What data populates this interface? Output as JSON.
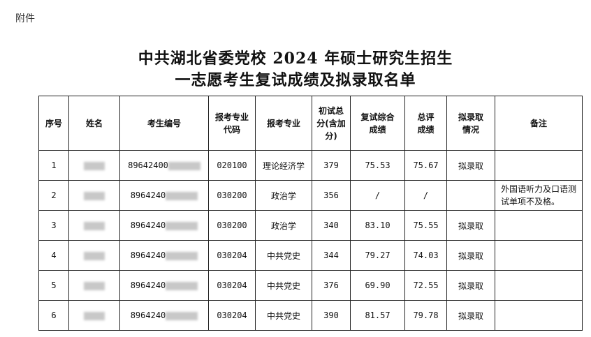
{
  "attachment_label": "附件",
  "title_line1": "中共湖北省委党校 2024 年硕士研究生招生",
  "title_line2": "一志愿考生复试成绩及拟录取名单",
  "columns": [
    "序号",
    "姓名",
    "考生编号",
    "报考专业代码",
    "报考专业",
    "初试总分(含加分)",
    "复试综合成绩",
    "总评成绩",
    "拟录取情况",
    "备注"
  ],
  "rows": [
    {
      "no": "1",
      "id_prefix": "89642400",
      "code": "020100",
      "major": "理论经济学",
      "initial": "379",
      "retest": "75.53",
      "total": "75.67",
      "status": "拟录取",
      "note": ""
    },
    {
      "no": "2",
      "id_prefix": "8964240",
      "code": "030200",
      "major": "政治学",
      "initial": "356",
      "retest": "/",
      "total": "/",
      "status": "",
      "note": "外国语听力及口语测试单项不及格。"
    },
    {
      "no": "3",
      "id_prefix": "8964240",
      "code": "030200",
      "major": "政治学",
      "initial": "340",
      "retest": "83.10",
      "total": "75.55",
      "status": "拟录取",
      "note": ""
    },
    {
      "no": "4",
      "id_prefix": "8964240",
      "code": "030204",
      "major": "中共党史",
      "initial": "344",
      "retest": "79.27",
      "total": "74.03",
      "status": "拟录取",
      "note": ""
    },
    {
      "no": "5",
      "id_prefix": "8964240",
      "code": "030204",
      "major": "中共党史",
      "initial": "376",
      "retest": "69.90",
      "total": "72.55",
      "status": "拟录取",
      "note": ""
    },
    {
      "no": "6",
      "id_prefix": "8964240",
      "code": "030204",
      "major": "中共党史",
      "initial": "390",
      "retest": "81.57",
      "total": "79.78",
      "status": "拟录取",
      "note": ""
    }
  ]
}
